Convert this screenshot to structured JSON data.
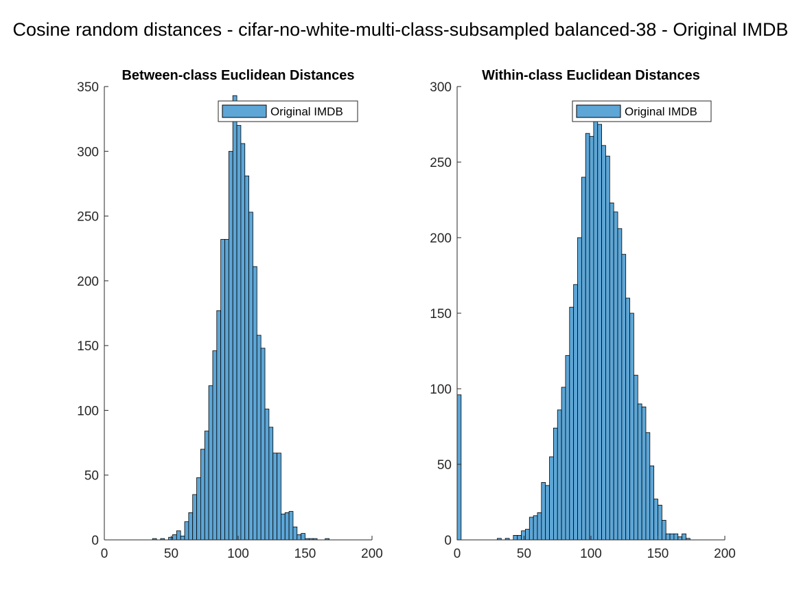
{
  "figure": {
    "title": "Cosine random distances - cifar-no-white-multi-class-subsampled balanced-38 - Original IMDB"
  },
  "colors": {
    "bar_fill": "#5da6d6",
    "bar_edge": "#000000",
    "axis": "#262626",
    "background": "#ffffff"
  },
  "chart_data": [
    {
      "type": "bar",
      "title": "Between-class Euclidean Distances",
      "xlabel": "",
      "ylabel": "",
      "xlim": [
        0,
        200
      ],
      "ylim": [
        0,
        350
      ],
      "xticks": [
        0,
        50,
        100,
        150,
        200
      ],
      "yticks": [
        0,
        50,
        100,
        150,
        200,
        250,
        300,
        350
      ],
      "grid": false,
      "legend_placement": "top-right",
      "bin_width": 3,
      "series": [
        {
          "name": "Original IMDB",
          "bin_start": [
            0,
            3,
            6,
            9,
            12,
            15,
            18,
            21,
            24,
            27,
            30,
            33,
            36,
            39,
            42,
            45,
            48,
            51,
            54,
            57,
            60,
            63,
            66,
            69,
            72,
            75,
            78,
            81,
            84,
            87,
            90,
            93,
            96,
            99,
            102,
            105,
            108,
            111,
            114,
            117,
            120,
            123,
            126,
            129,
            132,
            135,
            138,
            141,
            144,
            147,
            150,
            153,
            156,
            159,
            162,
            165,
            168,
            171,
            174,
            177
          ],
          "values": [
            0,
            0,
            0,
            0,
            0,
            0,
            0,
            0,
            0,
            0,
            0,
            0,
            1,
            0,
            1,
            0,
            2,
            4,
            7,
            3,
            14,
            21,
            35,
            48,
            70,
            84,
            119,
            146,
            177,
            232,
            232,
            300,
            343,
            320,
            306,
            281,
            253,
            211,
            158,
            148,
            101,
            87,
            67,
            67,
            20,
            21,
            22,
            10,
            4,
            5,
            1,
            1,
            1,
            0,
            0,
            1,
            0,
            0,
            0,
            0
          ]
        }
      ]
    },
    {
      "type": "bar",
      "title": "Within-class Euclidean Distances",
      "xlabel": "",
      "ylabel": "",
      "xlim": [
        0,
        200
      ],
      "ylim": [
        0,
        300
      ],
      "xticks": [
        0,
        50,
        100,
        150,
        200
      ],
      "yticks": [
        0,
        50,
        100,
        150,
        200,
        250,
        300
      ],
      "grid": false,
      "legend_placement": "top-right",
      "bin_width": 3,
      "series": [
        {
          "name": "Original IMDB",
          "bin_start": [
            0,
            3,
            6,
            9,
            12,
            15,
            18,
            21,
            24,
            27,
            30,
            33,
            36,
            39,
            42,
            45,
            48,
            51,
            54,
            57,
            60,
            63,
            66,
            69,
            72,
            75,
            78,
            81,
            84,
            87,
            90,
            93,
            96,
            99,
            102,
            105,
            108,
            111,
            114,
            117,
            120,
            123,
            126,
            129,
            132,
            135,
            138,
            141,
            144,
            147,
            150,
            153,
            156,
            159,
            162,
            165,
            168,
            171,
            174,
            177
          ],
          "values": [
            96,
            0,
            0,
            0,
            0,
            0,
            0,
            0,
            0,
            0,
            1,
            0,
            1,
            0,
            3,
            3,
            6,
            7,
            15,
            16,
            18,
            38,
            36,
            55,
            74,
            86,
            101,
            122,
            154,
            169,
            200,
            240,
            269,
            267,
            280,
            275,
            261,
            254,
            223,
            217,
            206,
            189,
            160,
            150,
            109,
            90,
            88,
            71,
            49,
            27,
            23,
            13,
            4,
            4,
            4,
            2,
            4,
            1,
            0,
            0
          ]
        }
      ]
    }
  ]
}
